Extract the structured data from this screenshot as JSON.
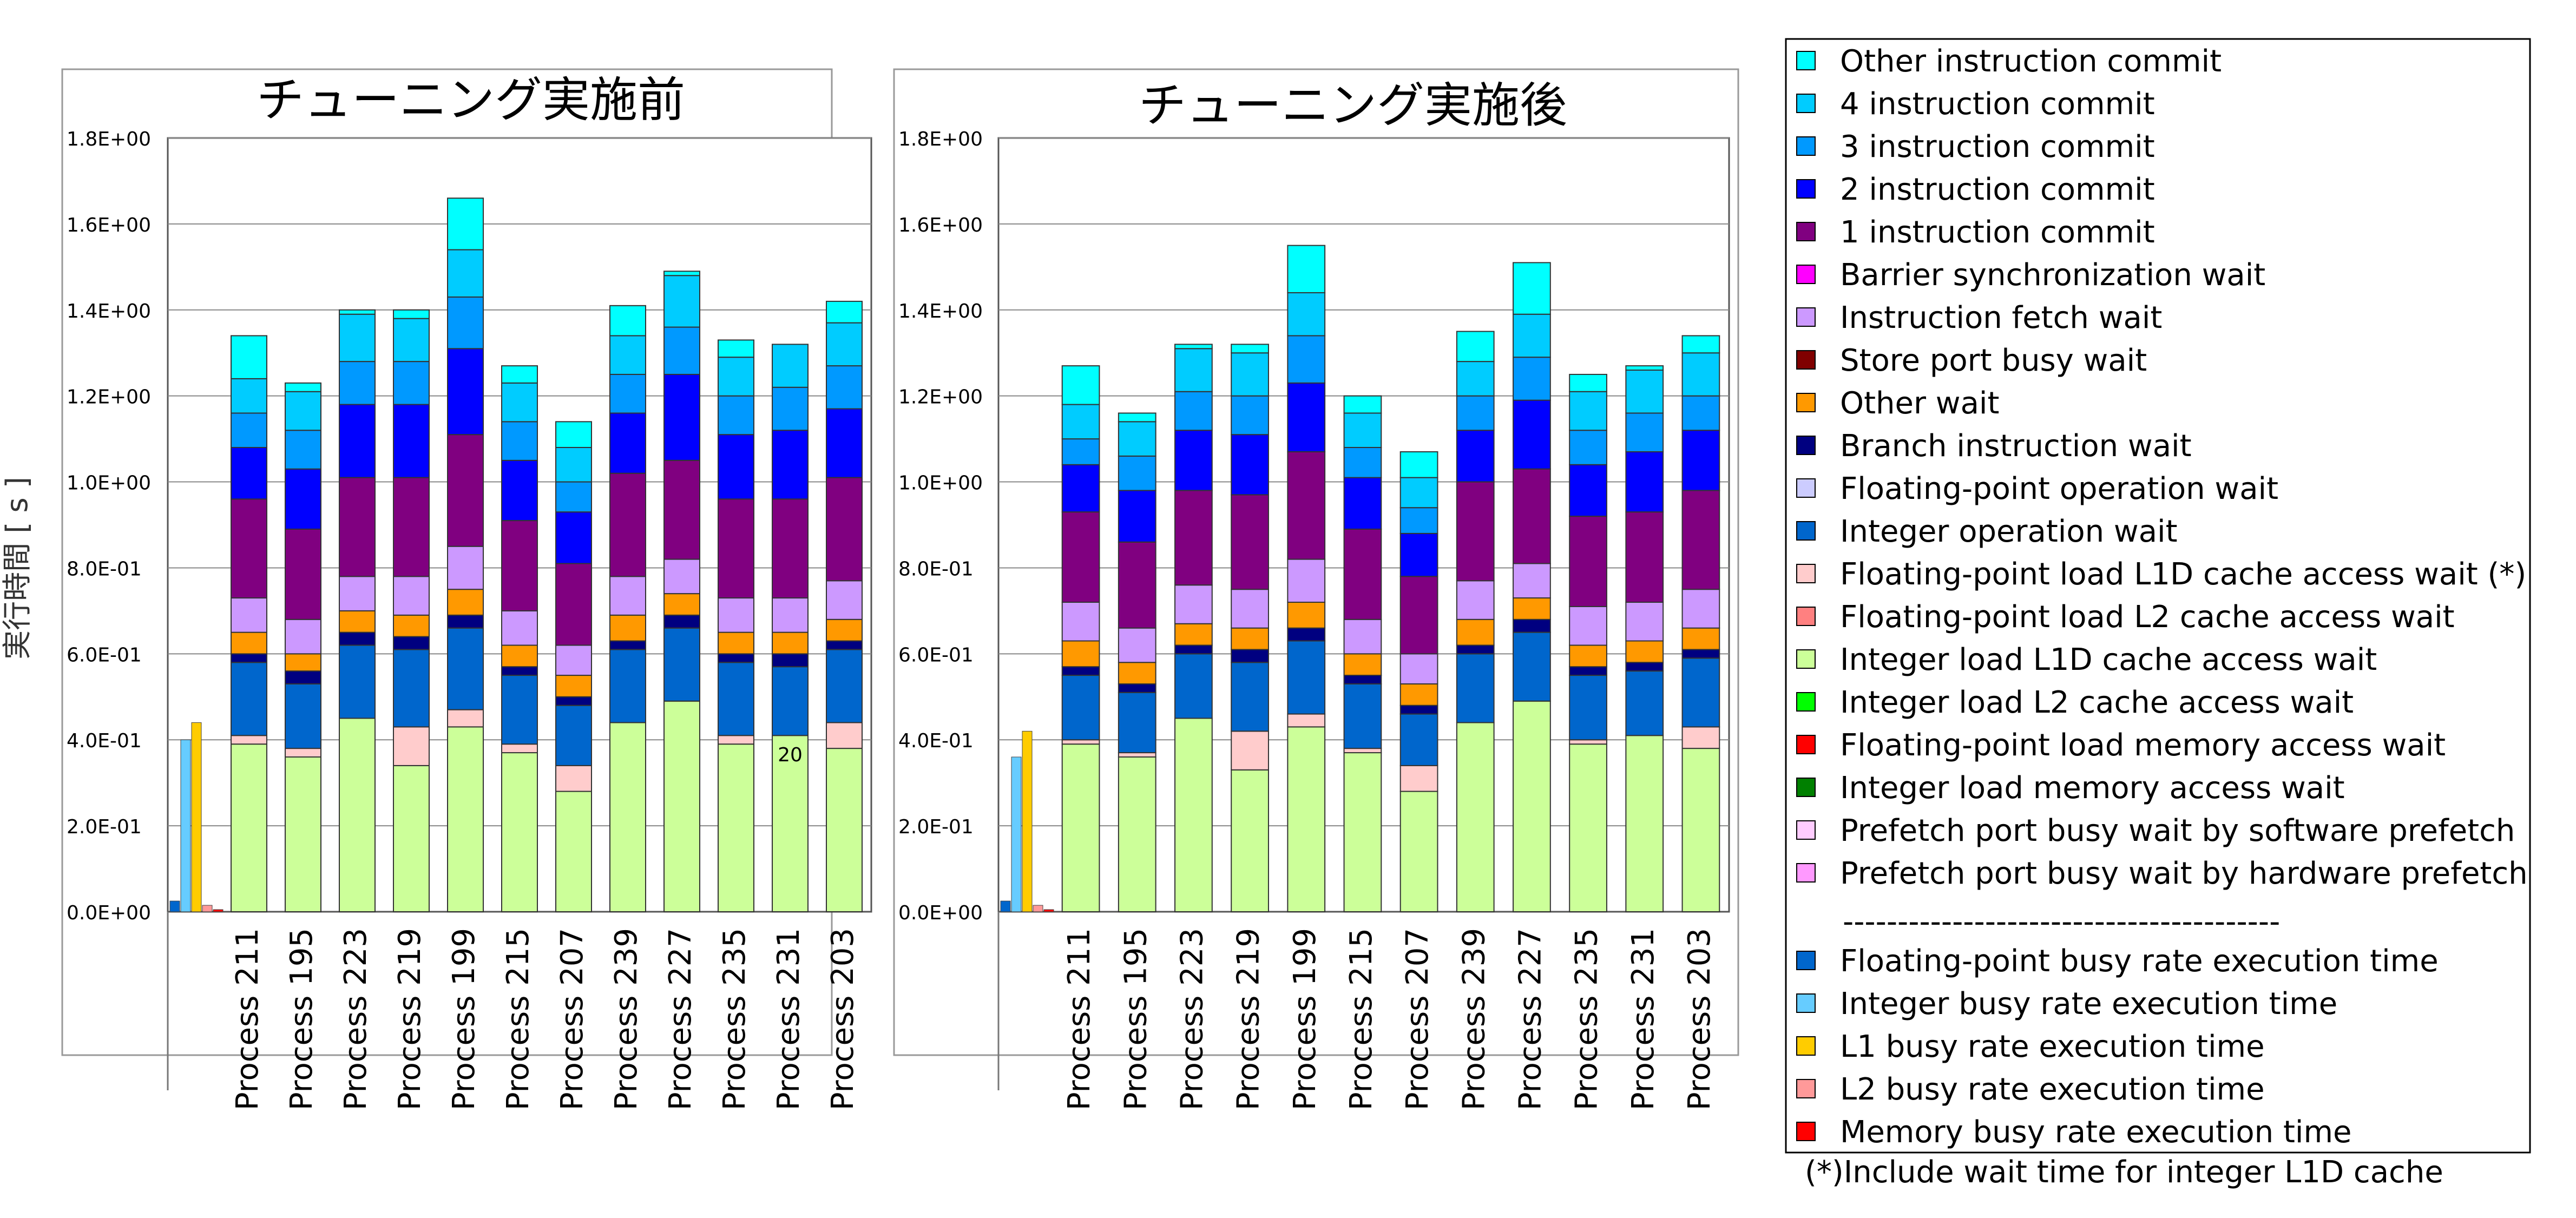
{
  "y_axis_label": "実行時間 [ s ]",
  "footnote": "(*)Include wait time for integer L1D cache",
  "legend_separator": "----------------------------------------",
  "legend_top": [
    {
      "name": "Other instruction commit",
      "color": "#00FFFF"
    },
    {
      "name": "4 instruction commit",
      "color": "#00CCFF"
    },
    {
      "name": "3 instruction commit",
      "color": "#0099FF"
    },
    {
      "name": "2 instruction commit",
      "color": "#0000FF"
    },
    {
      "name": "1 instruction commit",
      "color": "#800080"
    },
    {
      "name": "Barrier synchronization wait",
      "color": "#FF00FF"
    },
    {
      "name": "Instruction fetch wait",
      "color": "#CC99FF"
    },
    {
      "name": "Store port busy wait",
      "color": "#800000"
    },
    {
      "name": "Other wait",
      "color": "#FF9900"
    },
    {
      "name": "Branch instruction wait",
      "color": "#000080"
    },
    {
      "name": "Floating-point operation wait",
      "color": "#CCCCFF"
    },
    {
      "name": "Integer operation wait",
      "color": "#0066CC"
    },
    {
      "name": "Floating-point load L1D cache access wait (*)",
      "color": "#FFCCCC"
    },
    {
      "name": "Floating-point load L2 cache access wait",
      "color": "#FF8080"
    },
    {
      "name": "Integer load L1D cache access wait",
      "color": "#CCFF99"
    },
    {
      "name": "Integer load L2 cache access wait",
      "color": "#00FF00"
    },
    {
      "name": "Floating-point load memory access wait",
      "color": "#FF0000"
    },
    {
      "name": "Integer load memory access wait",
      "color": "#008000"
    },
    {
      "name": "Prefetch port busy wait by software prefetch",
      "color": "#FFCCFF"
    },
    {
      "name": "Prefetch port busy wait by hardware prefetch",
      "color": "#FF99FF"
    }
  ],
  "legend_bottom": [
    {
      "name": "Floating-point busy rate execution time",
      "color": "#0066CC"
    },
    {
      "name": "Integer busy rate execution time",
      "color": "#66CCFF"
    },
    {
      "name": "L1 busy rate execution time",
      "color": "#FFCC00"
    },
    {
      "name": "L2 busy rate execution time",
      "color": "#FF9999"
    },
    {
      "name": "Memory busy rate execution time",
      "color": "#FF0000"
    }
  ],
  "chart_data": [
    {
      "type": "bar",
      "stacked": true,
      "title": "チューニング実施前",
      "xlabel": "",
      "ylabel": "実行時間 [ s ]",
      "ylim": [
        0,
        1.8
      ],
      "yticks": [
        "0.0E+00",
        "2.0E-01",
        "4.0E-01",
        "6.0E-01",
        "8.0E-01",
        "1.0E+00",
        "1.2E+00",
        "1.4E+00",
        "1.6E+00",
        "1.8E+00"
      ],
      "grid": true,
      "annotation": "20",
      "busy_rate_bars": [
        0.025,
        0.4,
        0.44,
        0.015,
        0.005
      ],
      "categories": [
        "Process 211",
        "Process 195",
        "Process 223",
        "Process 219",
        "Process 199",
        "Process 215",
        "Process 207",
        "Process 239",
        "Process 227",
        "Process 235",
        "Process 231",
        "Process 203"
      ],
      "series": [
        {
          "name": "Integer load L1D cache access wait",
          "values": [
            0.39,
            0.36,
            0.45,
            0.34,
            0.43,
            0.37,
            0.28,
            0.44,
            0.49,
            0.39,
            0.41,
            0.38
          ]
        },
        {
          "name": "Floating-point load L1D cache access wait (*)",
          "values": [
            0.02,
            0.02,
            0.0,
            0.09,
            0.04,
            0.02,
            0.06,
            0.0,
            0.0,
            0.02,
            0.0,
            0.06
          ]
        },
        {
          "name": "Integer operation wait",
          "values": [
            0.17,
            0.15,
            0.17,
            0.18,
            0.19,
            0.16,
            0.14,
            0.17,
            0.17,
            0.17,
            0.16,
            0.17
          ]
        },
        {
          "name": "Branch instruction wait",
          "values": [
            0.02,
            0.03,
            0.03,
            0.03,
            0.03,
            0.02,
            0.02,
            0.02,
            0.03,
            0.02,
            0.03,
            0.02
          ]
        },
        {
          "name": "Other wait",
          "values": [
            0.05,
            0.04,
            0.05,
            0.05,
            0.06,
            0.05,
            0.05,
            0.06,
            0.05,
            0.05,
            0.05,
            0.05
          ]
        },
        {
          "name": "Instruction fetch wait",
          "values": [
            0.08,
            0.08,
            0.08,
            0.09,
            0.1,
            0.08,
            0.07,
            0.09,
            0.08,
            0.08,
            0.08,
            0.09
          ]
        },
        {
          "name": "1 instruction commit",
          "values": [
            0.23,
            0.21,
            0.23,
            0.23,
            0.26,
            0.21,
            0.19,
            0.24,
            0.23,
            0.23,
            0.23,
            0.24
          ]
        },
        {
          "name": "2 instruction commit",
          "values": [
            0.12,
            0.14,
            0.17,
            0.17,
            0.2,
            0.14,
            0.12,
            0.14,
            0.2,
            0.15,
            0.16,
            0.16
          ]
        },
        {
          "name": "3 instruction commit",
          "values": [
            0.08,
            0.09,
            0.1,
            0.1,
            0.12,
            0.09,
            0.07,
            0.09,
            0.11,
            0.09,
            0.1,
            0.1
          ]
        },
        {
          "name": "4 instruction commit",
          "values": [
            0.08,
            0.09,
            0.11,
            0.1,
            0.11,
            0.09,
            0.08,
            0.09,
            0.12,
            0.09,
            0.1,
            0.1
          ]
        },
        {
          "name": "Other instruction commit",
          "values": [
            0.1,
            0.02,
            0.01,
            0.02,
            0.12,
            0.04,
            0.06,
            0.07,
            0.01,
            0.04,
            0.0,
            0.05
          ]
        }
      ]
    },
    {
      "type": "bar",
      "stacked": true,
      "title": "チューニング実施後",
      "xlabel": "",
      "ylabel": "",
      "ylim": [
        0,
        1.8
      ],
      "yticks": [
        "0.0E+00",
        "2.0E-01",
        "4.0E-01",
        "6.0E-01",
        "8.0E-01",
        "1.0E+00",
        "1.2E+00",
        "1.4E+00",
        "1.6E+00",
        "1.8E+00"
      ],
      "grid": true,
      "busy_rate_bars": [
        0.025,
        0.36,
        0.42,
        0.015,
        0.005
      ],
      "categories": [
        "Process 211",
        "Process 195",
        "Process 223",
        "Process 219",
        "Process 199",
        "Process 215",
        "Process 207",
        "Process 239",
        "Process 227",
        "Process 235",
        "Process 231",
        "Process 203"
      ],
      "series": [
        {
          "name": "Integer load L1D cache access wait",
          "values": [
            0.39,
            0.36,
            0.45,
            0.33,
            0.43,
            0.37,
            0.28,
            0.44,
            0.49,
            0.39,
            0.41,
            0.38
          ]
        },
        {
          "name": "Floating-point load L1D cache access wait (*)",
          "values": [
            0.01,
            0.01,
            0.0,
            0.09,
            0.03,
            0.01,
            0.06,
            0.0,
            0.0,
            0.01,
            0.0,
            0.05
          ]
        },
        {
          "name": "Integer operation wait",
          "values": [
            0.15,
            0.14,
            0.15,
            0.16,
            0.17,
            0.15,
            0.12,
            0.16,
            0.16,
            0.15,
            0.15,
            0.16
          ]
        },
        {
          "name": "Branch instruction wait",
          "values": [
            0.02,
            0.02,
            0.02,
            0.03,
            0.03,
            0.02,
            0.02,
            0.02,
            0.03,
            0.02,
            0.02,
            0.02
          ]
        },
        {
          "name": "Other wait",
          "values": [
            0.06,
            0.05,
            0.05,
            0.05,
            0.06,
            0.05,
            0.05,
            0.06,
            0.05,
            0.05,
            0.05,
            0.05
          ]
        },
        {
          "name": "Instruction fetch wait",
          "values": [
            0.09,
            0.08,
            0.09,
            0.09,
            0.1,
            0.08,
            0.07,
            0.09,
            0.08,
            0.09,
            0.09,
            0.09
          ]
        },
        {
          "name": "1 instruction commit",
          "values": [
            0.21,
            0.2,
            0.22,
            0.22,
            0.25,
            0.21,
            0.18,
            0.23,
            0.22,
            0.21,
            0.21,
            0.23
          ]
        },
        {
          "name": "2 instruction commit",
          "values": [
            0.11,
            0.12,
            0.14,
            0.14,
            0.16,
            0.12,
            0.1,
            0.12,
            0.16,
            0.12,
            0.14,
            0.14
          ]
        },
        {
          "name": "3 instruction commit",
          "values": [
            0.06,
            0.08,
            0.09,
            0.09,
            0.11,
            0.07,
            0.06,
            0.08,
            0.1,
            0.08,
            0.09,
            0.08
          ]
        },
        {
          "name": "4 instruction commit",
          "values": [
            0.08,
            0.08,
            0.1,
            0.1,
            0.1,
            0.08,
            0.07,
            0.08,
            0.1,
            0.09,
            0.1,
            0.1
          ]
        },
        {
          "name": "Other instruction commit",
          "values": [
            0.09,
            0.02,
            0.01,
            0.02,
            0.11,
            0.04,
            0.06,
            0.07,
            0.12,
            0.04,
            0.01,
            0.04
          ]
        }
      ]
    }
  ]
}
